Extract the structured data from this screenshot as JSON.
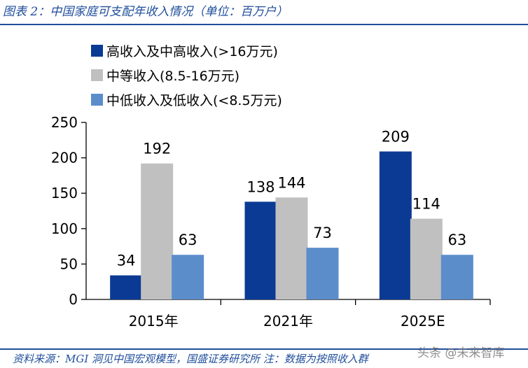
{
  "header": {
    "title": "图表 2：中国家庭可支配年收入情况（单位：百万户）"
  },
  "footer": {
    "source": "资料来源：MGI 洞见中国宏观模型，国盛证券研究所 注：数据为按照收入群",
    "watermark": "头条 @未来智库"
  },
  "chart_data": {
    "type": "bar",
    "categories": [
      "2015年",
      "2021年",
      "2025E"
    ],
    "series": [
      {
        "name": "高收入及中高收入(>16万元)",
        "values": [
          34,
          138,
          209
        ],
        "color": "#0a3a94"
      },
      {
        "name": "中等收入(8.5-16万元)",
        "values": [
          192,
          144,
          114
        ],
        "color": "#c0c0c0"
      },
      {
        "name": "中低收入及低收入(<8.5万元)",
        "values": [
          63,
          73,
          63
        ],
        "color": "#5b8dcb"
      }
    ],
    "ylim": [
      0,
      250
    ],
    "yticks": [
      0,
      50,
      100,
      150,
      200,
      250
    ],
    "legend": "top-left",
    "grid": false
  }
}
